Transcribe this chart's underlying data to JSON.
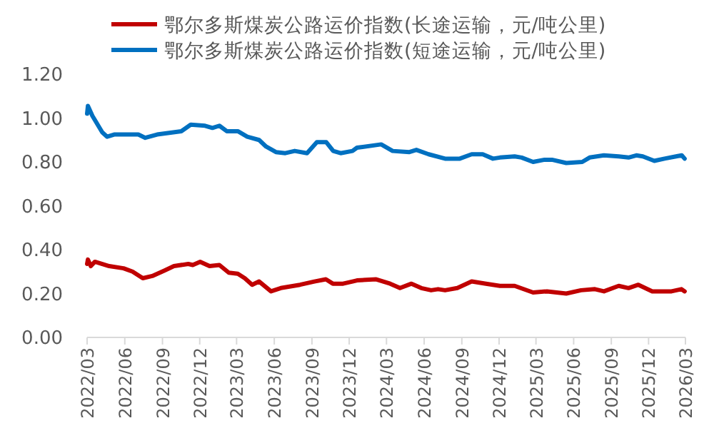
{
  "chart_data": {
    "type": "line",
    "legend": "top",
    "xlim": [
      "2022-03",
      "2026-03"
    ],
    "xticks": [
      {
        "value": "2022-03",
        "label": "2022/03"
      },
      {
        "value": "2022-06",
        "label": "2022/06"
      },
      {
        "value": "2022-09",
        "label": "2022/09"
      },
      {
        "value": "2022-12",
        "label": "2022/12"
      },
      {
        "value": "2023-03",
        "label": "2023/03"
      },
      {
        "value": "2023-06",
        "label": "2023/06"
      },
      {
        "value": "2023-09",
        "label": "2023/09"
      },
      {
        "value": "2023-12",
        "label": "2023/12"
      },
      {
        "value": "2024-03",
        "label": "2024/03"
      },
      {
        "value": "2024-06",
        "label": "2024/06"
      },
      {
        "value": "2024-09",
        "label": "2024/09"
      },
      {
        "value": "2024-12",
        "label": "2024/12"
      },
      {
        "value": "2025-03",
        "label": "2025/03"
      },
      {
        "value": "2025-06",
        "label": "2025/06"
      },
      {
        "value": "2025-09",
        "label": "2025/09"
      },
      {
        "value": "2025-12",
        "label": "2025/12"
      },
      {
        "value": "2026-03",
        "label": "2026/03"
      }
    ],
    "ylim": [
      0,
      1.2
    ],
    "yticks": [
      {
        "value": 0,
        "label": "0.00"
      },
      {
        "value": 0.2,
        "label": "0.20"
      },
      {
        "value": 0.4,
        "label": "0.40"
      },
      {
        "value": 0.6,
        "label": "0.60"
      },
      {
        "value": 0.8,
        "label": "0.80"
      },
      {
        "value": 1.0,
        "label": "1.00"
      },
      {
        "value": 1.2,
        "label": "1.20"
      }
    ],
    "series": [
      {
        "name": "鄂尔多斯煤炭公路运价指数(长途运输，元/吨公里)",
        "color": "#c00000",
        "x": [
          "2022-03-01",
          "2022-03-03",
          "2022-03-10",
          "2022-03-20",
          "2022-04-24",
          "2022-05-29",
          "2022-06-20",
          "2022-07-15",
          "2022-08-07",
          "2022-09-06",
          "2022-09-29",
          "2022-11-03",
          "2022-11-14",
          "2022-12-02",
          "2022-12-25",
          "2023-01-18",
          "2023-02-10",
          "2023-03-04",
          "2023-03-21",
          "2023-04-08",
          "2023-04-25",
          "2023-05-24",
          "2023-06-17",
          "2023-08-03",
          "2023-09-07",
          "2023-10-05",
          "2023-10-22",
          "2023-11-16",
          "2023-12-09",
          "2023-12-20",
          "2024-02-05",
          "2024-03-10",
          "2024-04-03",
          "2024-05-01",
          "2024-05-25",
          "2024-06-18",
          "2024-07-05",
          "2024-07-22",
          "2024-08-21",
          "2024-09-25",
          "2024-10-30",
          "2024-12-03",
          "2025-01-08",
          "2025-02-22",
          "2025-03-28",
          "2025-05-14",
          "2025-06-19",
          "2025-07-23",
          "2025-08-14",
          "2025-09-19",
          "2025-10-13",
          "2025-11-06",
          "2025-12-10",
          "2026-01-26",
          "2026-02-19",
          "2026-02-27"
        ],
        "values": [
          0.335,
          0.355,
          0.325,
          0.345,
          0.325,
          0.315,
          0.3,
          0.27,
          0.28,
          0.305,
          0.325,
          0.335,
          0.33,
          0.345,
          0.325,
          0.33,
          0.295,
          0.29,
          0.27,
          0.24,
          0.255,
          0.21,
          0.225,
          0.24,
          0.255,
          0.265,
          0.245,
          0.245,
          0.255,
          0.26,
          0.265,
          0.245,
          0.225,
          0.245,
          0.225,
          0.215,
          0.22,
          0.215,
          0.225,
          0.255,
          0.245,
          0.235,
          0.235,
          0.205,
          0.21,
          0.2,
          0.215,
          0.22,
          0.21,
          0.235,
          0.225,
          0.24,
          0.21,
          0.21,
          0.22,
          0.21
        ]
      },
      {
        "name": "鄂尔多斯煤炭公路运价指数(短途运输，元/吨公里)",
        "color": "#0070c0",
        "x": [
          "2022-03-01",
          "2022-03-03",
          "2022-03-14",
          "2022-04-07",
          "2022-04-19",
          "2022-05-06",
          "2022-07-04",
          "2022-07-21",
          "2022-08-19",
          "2022-10-17",
          "2022-11-09",
          "2022-12-14",
          "2023-01-01",
          "2023-01-18",
          "2023-02-05",
          "2023-03-04",
          "2023-03-27",
          "2023-04-25",
          "2023-05-12",
          "2023-06-05",
          "2023-06-28",
          "2023-07-21",
          "2023-08-20",
          "2023-09-13",
          "2023-10-06",
          "2023-10-23",
          "2023-11-10",
          "2023-12-09",
          "2023-12-20",
          "2024-02-17",
          "2024-03-16",
          "2024-04-26",
          "2024-05-13",
          "2024-06-12",
          "2024-07-22",
          "2024-08-27",
          "2024-09-25",
          "2024-10-22",
          "2024-11-16",
          "2024-12-03",
          "2025-01-08",
          "2025-01-25",
          "2025-02-22",
          "2025-03-22",
          "2025-04-09",
          "2025-05-14",
          "2025-06-22",
          "2025-07-10",
          "2025-08-14",
          "2025-09-19",
          "2025-10-13",
          "2025-11-01",
          "2025-11-17",
          "2025-12-15",
          "2026-01-09",
          "2026-02-06",
          "2026-02-20",
          "2026-02-27"
        ],
        "values": [
          1.02,
          1.055,
          1.01,
          0.935,
          0.915,
          0.925,
          0.925,
          0.91,
          0.925,
          0.94,
          0.97,
          0.965,
          0.955,
          0.965,
          0.94,
          0.94,
          0.915,
          0.9,
          0.87,
          0.845,
          0.84,
          0.85,
          0.84,
          0.89,
          0.89,
          0.85,
          0.84,
          0.85,
          0.865,
          0.88,
          0.85,
          0.845,
          0.855,
          0.835,
          0.815,
          0.815,
          0.835,
          0.835,
          0.815,
          0.82,
          0.825,
          0.82,
          0.8,
          0.81,
          0.81,
          0.795,
          0.8,
          0.82,
          0.83,
          0.825,
          0.82,
          0.83,
          0.825,
          0.805,
          0.815,
          0.825,
          0.83,
          0.815
        ]
      }
    ]
  }
}
